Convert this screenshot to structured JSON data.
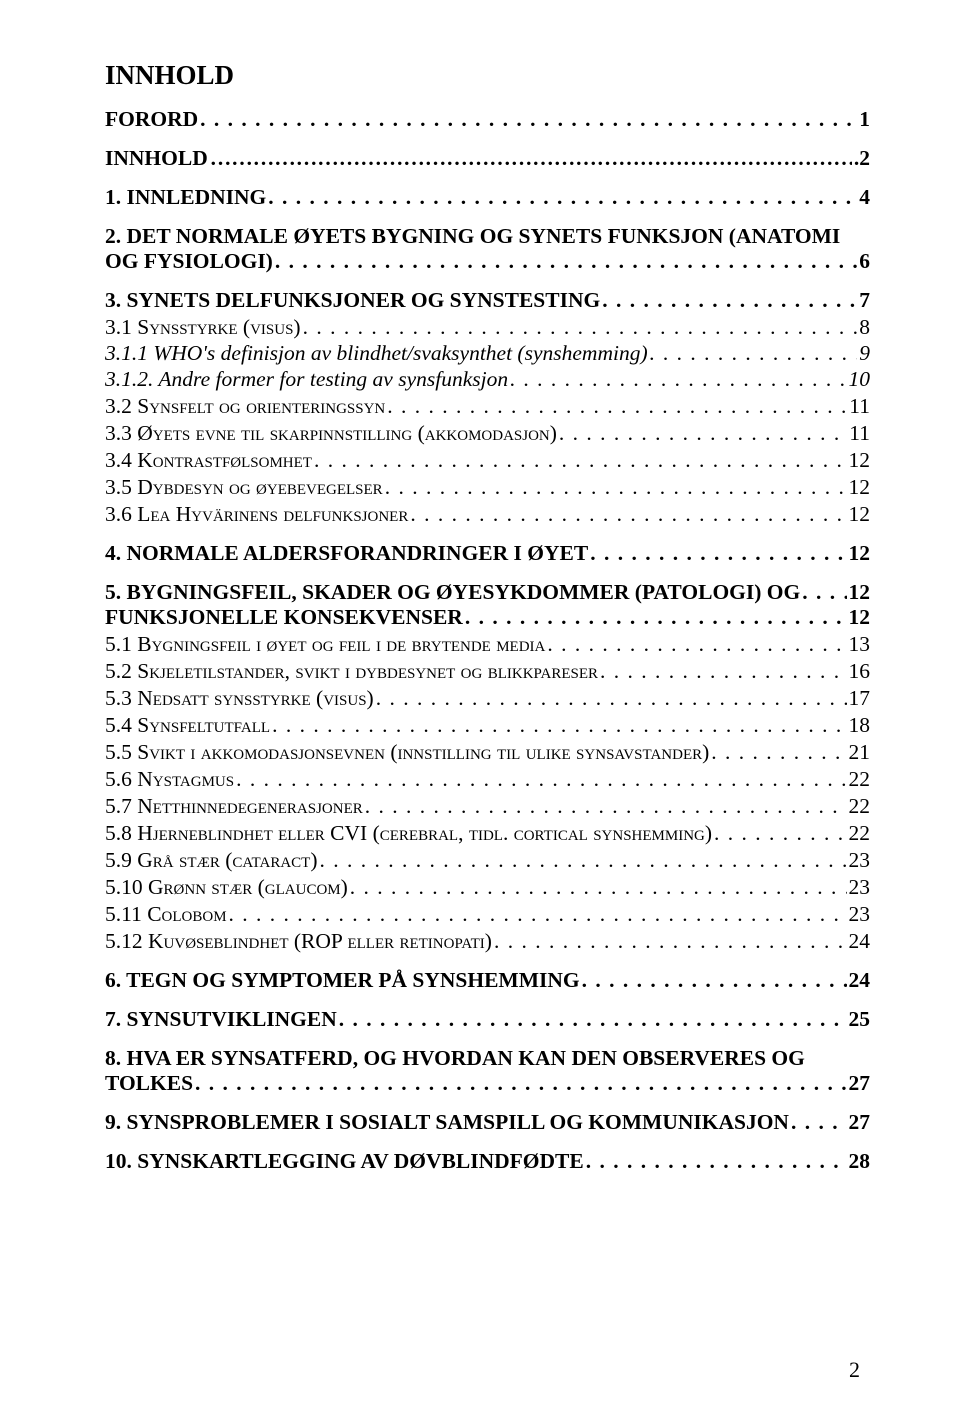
{
  "title": "INNHOLD",
  "leader_fill": ". . . . . . . . . . . . . . . . . . . . . . . . . . . . . . . . . . . . . . . . . . . . . . . . . . . . . . . . . . . . . . . . . . . . . . . . . . . . . . . . . . . . . . . . . . . . . . . . . . . . .",
  "entries": [
    {
      "lvl": "lvl0",
      "label": "FORORD",
      "page": "1"
    },
    {
      "lvl": "lvl0",
      "label": "INNHOLD",
      "page": "2",
      "leader": "plain"
    },
    {
      "lvl": "lvl0",
      "label": "1. INNLEDNING",
      "page": "4"
    },
    {
      "lvl": "lvl0",
      "label": "2. DET NORMALE ØYETS BYGNING OG SYNETS FUNKSJON (ANATOMI OG FYSIOLOGI)",
      "page": "6",
      "wrap": true
    },
    {
      "lvl": "lvl0",
      "label": "3. SYNETS DELFUNKSJONER OG SYNSTESTING",
      "page": "7"
    },
    {
      "lvl": "lvl1",
      "label": "3.1    Synsstyrke (visus)",
      "page": "8"
    },
    {
      "lvl": "lvl2",
      "label": "3.1.1    WHO's definisjon av blindhet/svaksynthet (synshemming)",
      "page": "9"
    },
    {
      "lvl": "lvl2",
      "label": "3.1.2.   Andre former for testing av synsfunksjon",
      "page": "10"
    },
    {
      "lvl": "lvl1",
      "label": "3.2    Synsfelt og orienteringssyn",
      "page": "11"
    },
    {
      "lvl": "lvl1",
      "label": "3.3    Øyets evne til skarpinnstilling (akkomodasjon)",
      "page": "11"
    },
    {
      "lvl": "lvl1",
      "label": "3.4    Kontrastfølsomhet",
      "page": "12"
    },
    {
      "lvl": "lvl1",
      "label": "3.5    Dybdesyn og  øyebevegelser",
      "page": "12"
    },
    {
      "lvl": "lvl1",
      "label": "3.6    Lea Hyvärinens delfunksjoner",
      "page": "12"
    },
    {
      "lvl": "lvl0",
      "label": "4.  NORMALE ALDERSFORANDRINGER I ØYET",
      "page": "12"
    },
    {
      "lvl": "lvl0",
      "label": "5.  BYGNINGSFEIL, SKADER OG ØYESYKDOMMER (PATOLOGI) OG",
      "page": "12"
    },
    {
      "lvl": "lvl0",
      "label": "FUNKSJONELLE KONSEKVENSER",
      "page": "12",
      "tight": true
    },
    {
      "lvl": "lvl1",
      "label": "5.1    Bygningsfeil i øyet og feil i de brytende media",
      "page": "13"
    },
    {
      "lvl": "lvl1",
      "label": "5.2    Skjeletilstander, svikt i dybdesynet og blikkpareser",
      "page": "16"
    },
    {
      "lvl": "lvl1",
      "label": "5.3    Nedsatt synsstyrke (visus)",
      "page": "17"
    },
    {
      "lvl": "lvl1",
      "label": "5.4    Synsfeltutfall",
      "page": "18"
    },
    {
      "lvl": "lvl1",
      "label": "5.5    Svikt i akkomodasjonsevnen (innstilling til ulike synsavstander)",
      "page": "21"
    },
    {
      "lvl": "lvl1",
      "label": "5.6    Nystagmus",
      "page": "22"
    },
    {
      "lvl": "lvl1",
      "label": "5.7    Netthinnedegenerasjoner",
      "page": "22"
    },
    {
      "lvl": "lvl1b",
      "label": "5.8    Hjerneblindhet eller CVI (cerebral, tidl. cortical synshemming)",
      "page": "22"
    },
    {
      "lvl": "lvl1",
      "label": "5.9    Grå stær (cataract)",
      "page": "23"
    },
    {
      "lvl": "lvl1",
      "label": "5.10     Grønn stær (glaucom)",
      "page": "23"
    },
    {
      "lvl": "lvl1",
      "label": "5.11     Colobom",
      "page": "23"
    },
    {
      "lvl": "lvl1b",
      "label": "5.12     Kuvøseblindhet (ROP eller retinopati)",
      "page": "24"
    },
    {
      "lvl": "lvl0",
      "label": "6.  TEGN OG SYMPTOMER PÅ SYNSHEMMING",
      "page": "24"
    },
    {
      "lvl": "lvl0",
      "label": "7.  SYNSUTVIKLINGEN",
      "page": "25"
    },
    {
      "lvl": "lvl0",
      "label": "8.  HVA ER SYNSATFERD, OG HVORDAN KAN DEN OBSERVERES OG TOLKES",
      "page": "27",
      "wrap": true
    },
    {
      "lvl": "lvl0",
      "label": "9.  SYNSPROBLEMER I SOSIALT SAMSPILL OG KOMMUNIKASJON",
      "page": "27"
    },
    {
      "lvl": "lvl0",
      "label": "10.  SYNSKARTLEGGING AV DØVBLINDFØDTE",
      "page": "28"
    }
  ],
  "page_number": "2",
  "colors": {
    "text": "#000000",
    "background": "#ffffff"
  },
  "fonts": {
    "body": "Times New Roman",
    "title_size_pt": 18,
    "entry_size_pt": 14
  }
}
